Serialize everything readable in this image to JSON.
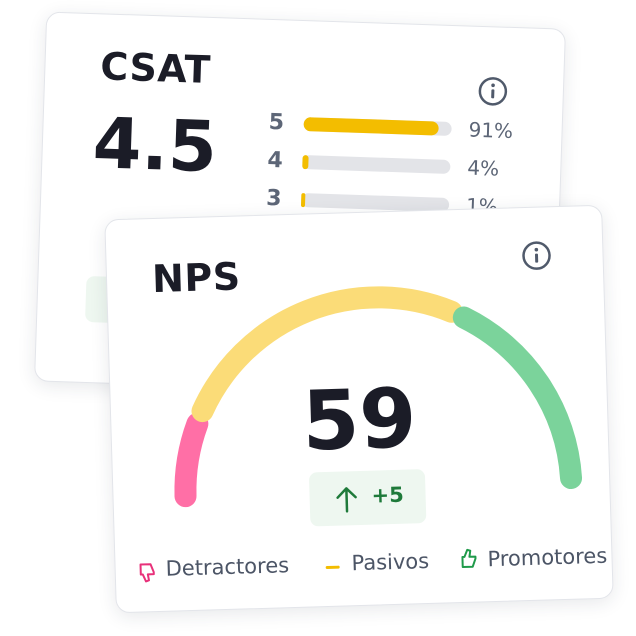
{
  "csat": {
    "title": "CSAT",
    "score": "4.5",
    "rows": [
      {
        "star": "5",
        "value": 91,
        "label": "91%"
      },
      {
        "star": "4",
        "value": 4,
        "label": "4%"
      },
      {
        "star": "3",
        "value": 1,
        "label": "1%"
      }
    ]
  },
  "nps": {
    "title": "NPS",
    "score": "59",
    "change": "+5",
    "legend": [
      "Detractores",
      "Pasivos",
      "Promotores"
    ]
  }
}
